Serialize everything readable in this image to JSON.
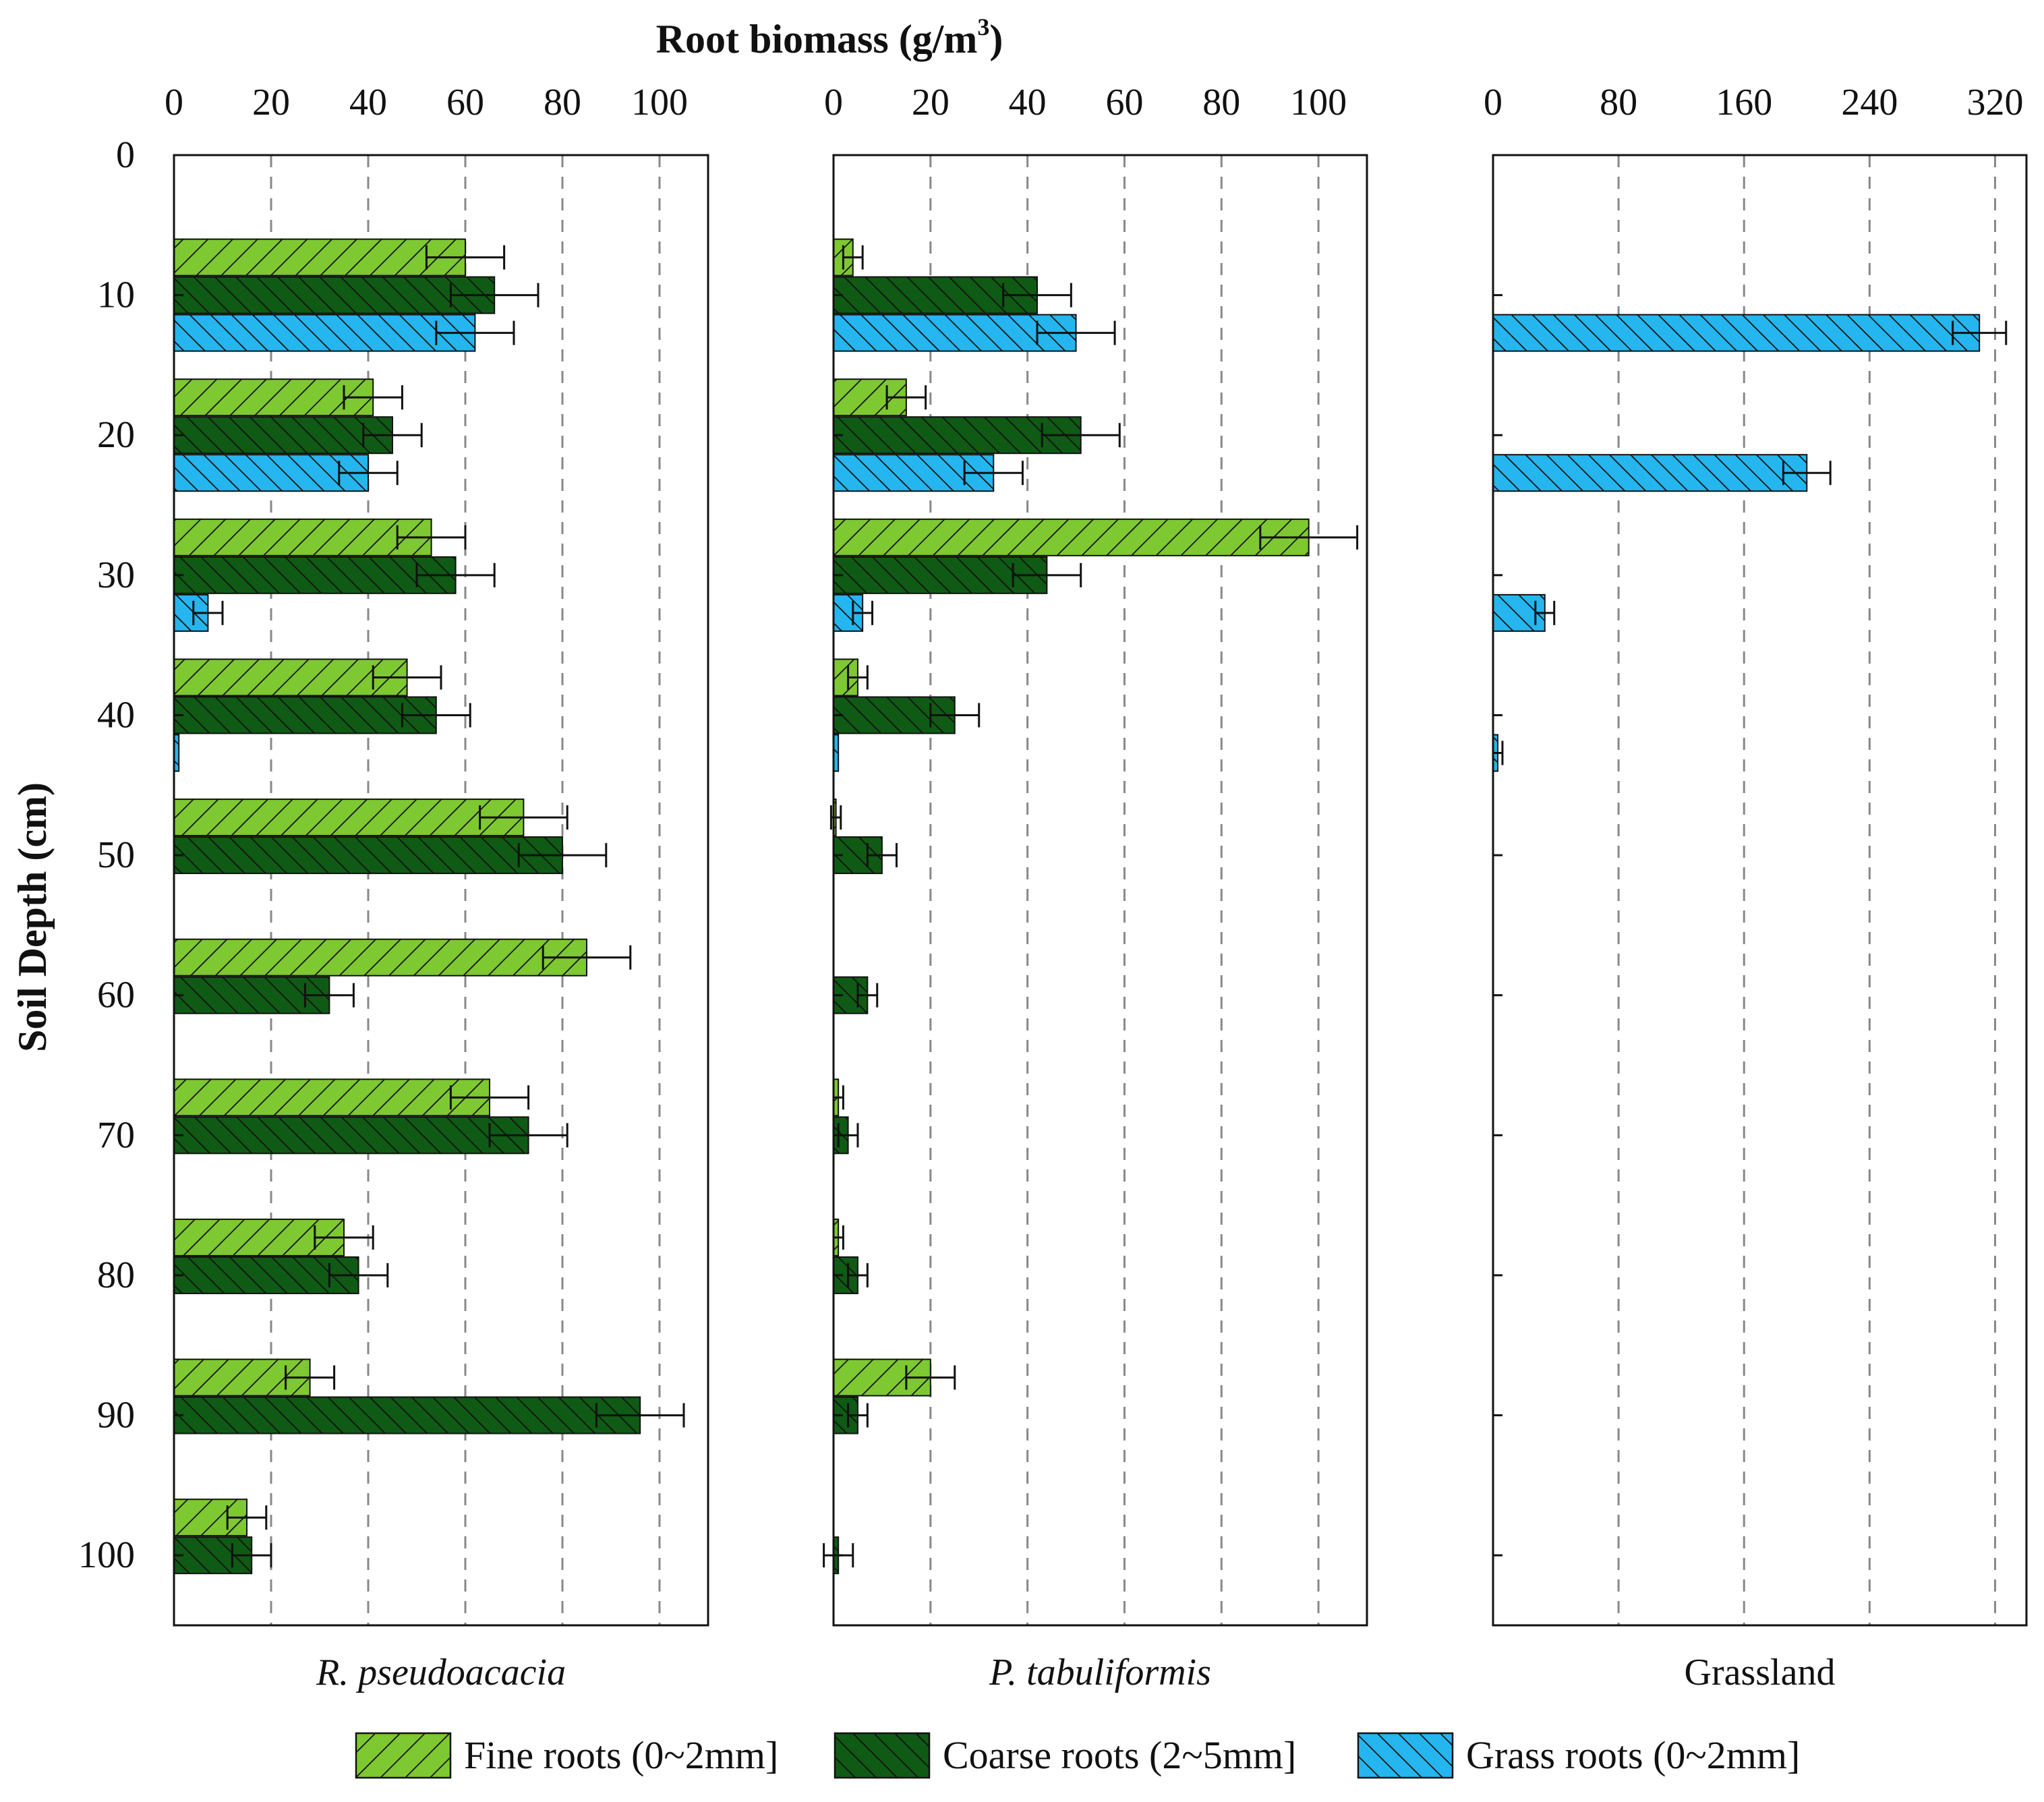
{
  "title": "Root biomass (g/m",
  "title_sup": "3",
  "title_close": ")",
  "ylabel": "Soil Depth (cm)",
  "colors": {
    "fine": "#7ec832",
    "coarse": "#0f5a14",
    "grass": "#25b6ef",
    "grid": "#888888",
    "axis": "#111111"
  },
  "legend": [
    {
      "key": "fine",
      "label": "Fine roots (0~2mm]"
    },
    {
      "key": "coarse",
      "label": "Coarse roots (2~5mm]"
    },
    {
      "key": "grass",
      "label": "Grass roots  (0~2mm]"
    }
  ],
  "chart_data": [
    {
      "type": "bar",
      "orientation": "horizontal",
      "panel_label": "R. pseudoacacia",
      "italic": true,
      "depth_ticks": [
        "0",
        "10",
        "20",
        "30",
        "40",
        "50",
        "60",
        "70",
        "80",
        "90",
        "100"
      ],
      "x_ticks": [
        "0",
        "20",
        "40",
        "60",
        "80",
        "100"
      ],
      "xlim": [
        0,
        110
      ],
      "ylim": [
        0,
        105
      ],
      "grid_values": [
        20,
        40,
        60,
        80,
        100
      ],
      "series": [
        {
          "key": "fine",
          "depths": [
            10,
            20,
            30,
            40,
            50,
            60,
            70,
            80,
            90,
            100
          ],
          "values": [
            60,
            41,
            53,
            48,
            72,
            85,
            65,
            35,
            28,
            15
          ],
          "errors": [
            8,
            6,
            7,
            7,
            9,
            9,
            8,
            6,
            5,
            4
          ]
        },
        {
          "key": "coarse",
          "depths": [
            10,
            20,
            30,
            40,
            50,
            60,
            70,
            80,
            90,
            100
          ],
          "values": [
            66,
            45,
            58,
            54,
            80,
            32,
            73,
            38,
            96,
            16
          ],
          "errors": [
            9,
            6,
            8,
            7,
            9,
            5,
            8,
            6,
            9,
            4
          ]
        },
        {
          "key": "grass",
          "depths": [
            10,
            20,
            30,
            40
          ],
          "values": [
            62,
            40,
            7,
            1
          ],
          "errors": [
            8,
            6,
            3,
            0
          ]
        }
      ]
    },
    {
      "type": "bar",
      "orientation": "horizontal",
      "panel_label": "P. tabuliformis",
      "italic": true,
      "depth_ticks": [
        "0",
        "10",
        "20",
        "30",
        "40",
        "50",
        "60",
        "70",
        "80",
        "90",
        "100"
      ],
      "x_ticks": [
        "0",
        "20",
        "40",
        "60",
        "80",
        "100"
      ],
      "xlim": [
        0,
        110
      ],
      "ylim": [
        0,
        105
      ],
      "grid_values": [
        20,
        40,
        60,
        80,
        100
      ],
      "series": [
        {
          "key": "fine",
          "depths": [
            10,
            20,
            30,
            40,
            50,
            60,
            70,
            80,
            90,
            100
          ],
          "values": [
            4,
            15,
            98,
            5,
            0.5,
            0,
            1,
            1,
            20,
            0
          ],
          "errors": [
            2,
            4,
            10,
            2,
            1,
            0,
            1,
            1,
            5,
            0
          ]
        },
        {
          "key": "coarse",
          "depths": [
            10,
            20,
            30,
            40,
            50,
            60,
            70,
            80,
            90,
            100
          ],
          "values": [
            42,
            51,
            44,
            25,
            10,
            7,
            3,
            5,
            5,
            1
          ],
          "errors": [
            7,
            8,
            7,
            5,
            3,
            2,
            2,
            2,
            2,
            3
          ]
        },
        {
          "key": "grass",
          "depths": [
            10,
            20,
            30,
            40
          ],
          "values": [
            50,
            33,
            6,
            1
          ],
          "errors": [
            8,
            6,
            2,
            0
          ]
        }
      ]
    },
    {
      "type": "bar",
      "orientation": "horizontal",
      "panel_label": "Grassland",
      "italic": false,
      "depth_ticks": [
        "0",
        "10",
        "20",
        "30",
        "40",
        "50",
        "60",
        "70",
        "80",
        "90",
        "100"
      ],
      "x_ticks": [
        "0",
        "80",
        "160",
        "240",
        "320"
      ],
      "xlim": [
        0,
        340
      ],
      "ylim": [
        0,
        105
      ],
      "grid_values": [
        80,
        160,
        240,
        320
      ],
      "series": [
        {
          "key": "grass",
          "depths": [
            10,
            20,
            30,
            40
          ],
          "values": [
            310,
            200,
            33,
            3
          ],
          "errors": [
            17,
            15,
            6,
            3
          ]
        }
      ]
    }
  ]
}
